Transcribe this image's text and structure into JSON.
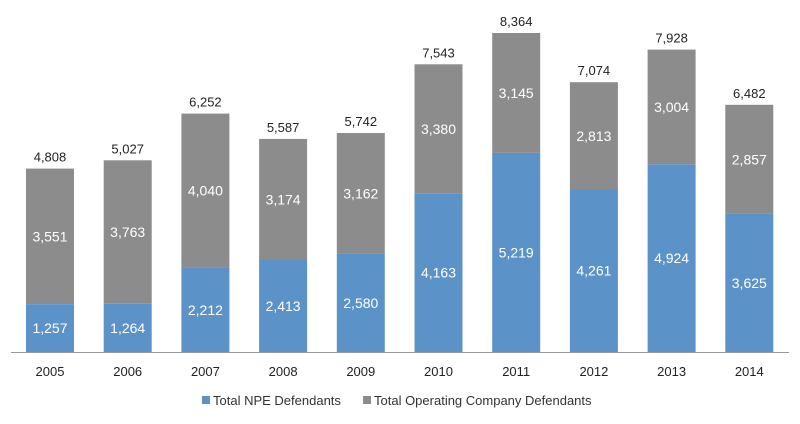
{
  "chart_data": {
    "type": "bar",
    "stacked": true,
    "categories": [
      "2005",
      "2006",
      "2007",
      "2008",
      "2009",
      "2010",
      "2011",
      "2012",
      "2013",
      "2014"
    ],
    "series": [
      {
        "name": "Total NPE Defendants",
        "color": "#5b93c8",
        "values": [
          1257,
          1264,
          2212,
          2413,
          2580,
          4163,
          5219,
          4261,
          4924,
          3625
        ],
        "labels": [
          "1,257",
          "1,264",
          "2,212",
          "2,413",
          "2,580",
          "4,163",
          "5,219",
          "4,261",
          "4,924",
          "3,625"
        ]
      },
      {
        "name": "Total Operating Company Defendants",
        "color": "#8c8c8c",
        "values": [
          3551,
          3763,
          4040,
          3174,
          3162,
          3380,
          3145,
          2813,
          3004,
          2857
        ],
        "labels": [
          "3,551",
          "3,763",
          "4,040",
          "3,174",
          "3,162",
          "3,380",
          "3,145",
          "2,813",
          "3,004",
          "2,857"
        ]
      }
    ],
    "totals": [
      4808,
      5027,
      6252,
      5587,
      5742,
      7543,
      8364,
      7074,
      7928,
      6482
    ],
    "total_labels": [
      "4,808",
      "5,027",
      "6,252",
      "5,587",
      "5,742",
      "7,543",
      "8,364",
      "7,074",
      "7,928",
      "6,482"
    ],
    "title": "",
    "xlabel": "",
    "ylabel": "",
    "ylim": [
      0,
      8364
    ],
    "grid": false,
    "legend_position": "bottom-center",
    "axis_color": "#999999"
  }
}
